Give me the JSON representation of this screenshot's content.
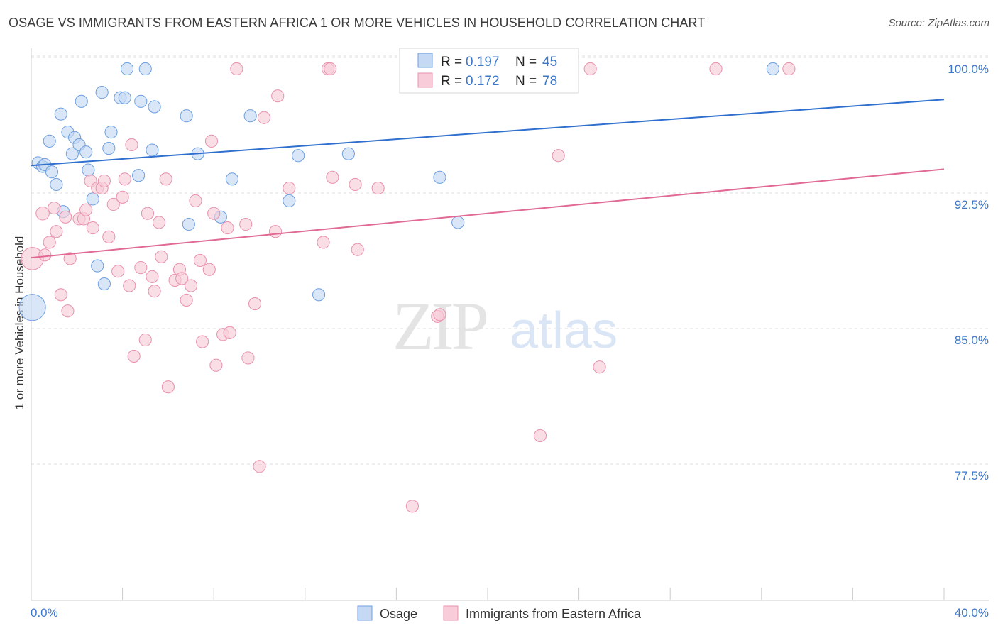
{
  "header": {
    "title": "OSAGE VS IMMIGRANTS FROM EASTERN AFRICA 1 OR MORE VEHICLES IN HOUSEHOLD CORRELATION CHART",
    "source": "Source: ZipAtlas.com"
  },
  "watermark": {
    "zip": "ZIP",
    "atlas": "atlas"
  },
  "colors": {
    "blue": "#6d9fe0",
    "blue_fill": "#c5d8f4",
    "blue_line": "#2f6fce",
    "pink": "#e891ad",
    "pink_fill": "#f8cdd9",
    "pink_line": "#e06a94",
    "tick_text": "#3d77c9",
    "grid": "#dddddd"
  },
  "legend": {
    "rows": [
      {
        "r_label": "R = ",
        "r_value": "0.197",
        "n_label": "N = ",
        "n_value": "45"
      },
      {
        "r_label": "R = ",
        "r_value": "0.172",
        "n_label": "N = ",
        "n_value": "78"
      }
    ]
  },
  "chart_data": {
    "type": "scatter",
    "title": "OSAGE VS IMMIGRANTS FROM EASTERN AFRICA 1 OR MORE VEHICLES IN HOUSEHOLD CORRELATION CHART",
    "xlabel": "",
    "ylabel": "1 or more Vehicles in Household",
    "xlim": [
      0,
      40
    ],
    "ylim": [
      70.0,
      100.8
    ],
    "x_tick_labels": [
      "0.0%",
      "40.0%"
    ],
    "y_ticks": [
      77.5,
      85.0,
      92.5,
      100.0
    ],
    "y_tick_labels": [
      "77.5%",
      "85.0%",
      "92.5%",
      "100.0%"
    ],
    "grid": true,
    "legend_placement": "top-center",
    "series": [
      {
        "name": "Osage",
        "color": "#6d9fe0",
        "trend": {
          "x": [
            0,
            40
          ],
          "y": [
            94.65,
            98.3
          ]
        },
        "points": [
          [
            0.05,
            86.8,
            26
          ],
          [
            0.3,
            94.8,
            12
          ],
          [
            0.5,
            94.6,
            12
          ],
          [
            0.6,
            94.7,
            12
          ],
          [
            0.8,
            96.0,
            12
          ],
          [
            0.9,
            94.3,
            12
          ],
          [
            1.1,
            93.6,
            12
          ],
          [
            1.3,
            97.5,
            12
          ],
          [
            1.4,
            92.1,
            12
          ],
          [
            1.6,
            96.5,
            12
          ],
          [
            1.8,
            95.3,
            12
          ],
          [
            1.9,
            96.2,
            12
          ],
          [
            2.1,
            95.8,
            12
          ],
          [
            2.2,
            98.2,
            12
          ],
          [
            2.4,
            95.4,
            12
          ],
          [
            2.5,
            94.4,
            12
          ],
          [
            2.7,
            92.8,
            12
          ],
          [
            2.9,
            89.1,
            12
          ],
          [
            3.1,
            98.7,
            12
          ],
          [
            3.2,
            88.1,
            12
          ],
          [
            3.4,
            95.6,
            12
          ],
          [
            3.5,
            96.5,
            12
          ],
          [
            3.9,
            98.4,
            12
          ],
          [
            4.1,
            98.4,
            12
          ],
          [
            4.2,
            100.0,
            12
          ],
          [
            4.7,
            94.1,
            12
          ],
          [
            4.8,
            98.2,
            12
          ],
          [
            5.0,
            100.0,
            12
          ],
          [
            5.3,
            95.5,
            12
          ],
          [
            5.4,
            97.9,
            12
          ],
          [
            6.8,
            97.4,
            12
          ],
          [
            6.9,
            91.4,
            12
          ],
          [
            7.3,
            95.3,
            12
          ],
          [
            8.3,
            91.8,
            12
          ],
          [
            8.8,
            93.9,
            12
          ],
          [
            9.6,
            97.4,
            12
          ],
          [
            11.3,
            92.7,
            12
          ],
          [
            11.7,
            95.2,
            12
          ],
          [
            12.6,
            87.5,
            12
          ],
          [
            13.9,
            95.3,
            12
          ],
          [
            17.9,
            94.0,
            12
          ],
          [
            18.7,
            91.5,
            12
          ],
          [
            23.5,
            100.0,
            12
          ],
          [
            32.5,
            100.0,
            12
          ]
        ]
      },
      {
        "name": "Immigrants from Eastern Africa",
        "color": "#e891ad",
        "trend": {
          "x": [
            0,
            40
          ],
          "y": [
            89.55,
            94.45
          ]
        },
        "points": [
          [
            0.05,
            89.5,
            22
          ],
          [
            0.5,
            92.0,
            13
          ],
          [
            0.6,
            89.7,
            12
          ],
          [
            0.8,
            90.4,
            12
          ],
          [
            1.0,
            92.3,
            12
          ],
          [
            1.1,
            91.0,
            12
          ],
          [
            1.3,
            87.5,
            12
          ],
          [
            1.5,
            91.8,
            12
          ],
          [
            1.6,
            86.6,
            12
          ],
          [
            1.7,
            89.5,
            12
          ],
          [
            2.1,
            91.7,
            12
          ],
          [
            2.3,
            91.7,
            12
          ],
          [
            2.4,
            92.2,
            12
          ],
          [
            2.6,
            93.8,
            12
          ],
          [
            2.7,
            91.2,
            12
          ],
          [
            2.9,
            93.4,
            12
          ],
          [
            3.1,
            93.4,
            12
          ],
          [
            3.2,
            93.8,
            12
          ],
          [
            3.4,
            90.7,
            12
          ],
          [
            3.6,
            92.5,
            12
          ],
          [
            3.8,
            88.8,
            12
          ],
          [
            4.0,
            92.9,
            12
          ],
          [
            4.1,
            93.9,
            12
          ],
          [
            4.3,
            88.0,
            12
          ],
          [
            4.4,
            95.8,
            12
          ],
          [
            4.5,
            84.1,
            12
          ],
          [
            4.8,
            89.0,
            12
          ],
          [
            5.0,
            85.0,
            12
          ],
          [
            5.1,
            92.0,
            12
          ],
          [
            5.3,
            88.5,
            12
          ],
          [
            5.4,
            87.7,
            12
          ],
          [
            5.6,
            91.5,
            12
          ],
          [
            5.7,
            89.6,
            12
          ],
          [
            5.9,
            93.9,
            12
          ],
          [
            6.0,
            82.4,
            12
          ],
          [
            6.3,
            88.3,
            12
          ],
          [
            6.5,
            88.9,
            12
          ],
          [
            6.6,
            88.4,
            12
          ],
          [
            6.8,
            87.2,
            12
          ],
          [
            7.0,
            88.0,
            12
          ],
          [
            7.2,
            92.7,
            12
          ],
          [
            7.4,
            89.4,
            12
          ],
          [
            7.5,
            84.9,
            12
          ],
          [
            7.8,
            88.9,
            12
          ],
          [
            7.9,
            96.0,
            12
          ],
          [
            8.0,
            92.0,
            12
          ],
          [
            8.1,
            83.6,
            12
          ],
          [
            8.4,
            85.3,
            12
          ],
          [
            8.6,
            91.2,
            12
          ],
          [
            8.7,
            85.4,
            12
          ],
          [
            9.4,
            91.4,
            12
          ],
          [
            9.5,
            84.0,
            12
          ],
          [
            9.8,
            87.0,
            12
          ],
          [
            10.0,
            78.0,
            12
          ],
          [
            10.2,
            97.3,
            12
          ],
          [
            10.7,
            91.0,
            12
          ],
          [
            10.8,
            98.5,
            12
          ],
          [
            11.3,
            93.4,
            12
          ],
          [
            12.8,
            90.4,
            12
          ],
          [
            13.0,
            100.0,
            12
          ],
          [
            13.2,
            94.0,
            12
          ],
          [
            14.2,
            93.6,
            12
          ],
          [
            14.3,
            90.0,
            12
          ],
          [
            15.2,
            93.4,
            12
          ],
          [
            16.7,
            75.8,
            12
          ],
          [
            17.8,
            86.3,
            12
          ],
          [
            17.9,
            86.4,
            12
          ],
          [
            18.3,
            100.0,
            12
          ],
          [
            20.0,
            100.0,
            12
          ],
          [
            22.3,
            79.7,
            12
          ],
          [
            23.1,
            95.2,
            12
          ],
          [
            24.5,
            100.0,
            12
          ],
          [
            24.9,
            83.5,
            12
          ],
          [
            30.0,
            100.0,
            12
          ],
          [
            33.2,
            100.0,
            12
          ],
          [
            9.0,
            100.0,
            12
          ],
          [
            13.1,
            100.0,
            12
          ]
        ]
      }
    ]
  },
  "bottom_legend": [
    {
      "label": "Osage"
    },
    {
      "label": "Immigrants from Eastern Africa"
    }
  ]
}
